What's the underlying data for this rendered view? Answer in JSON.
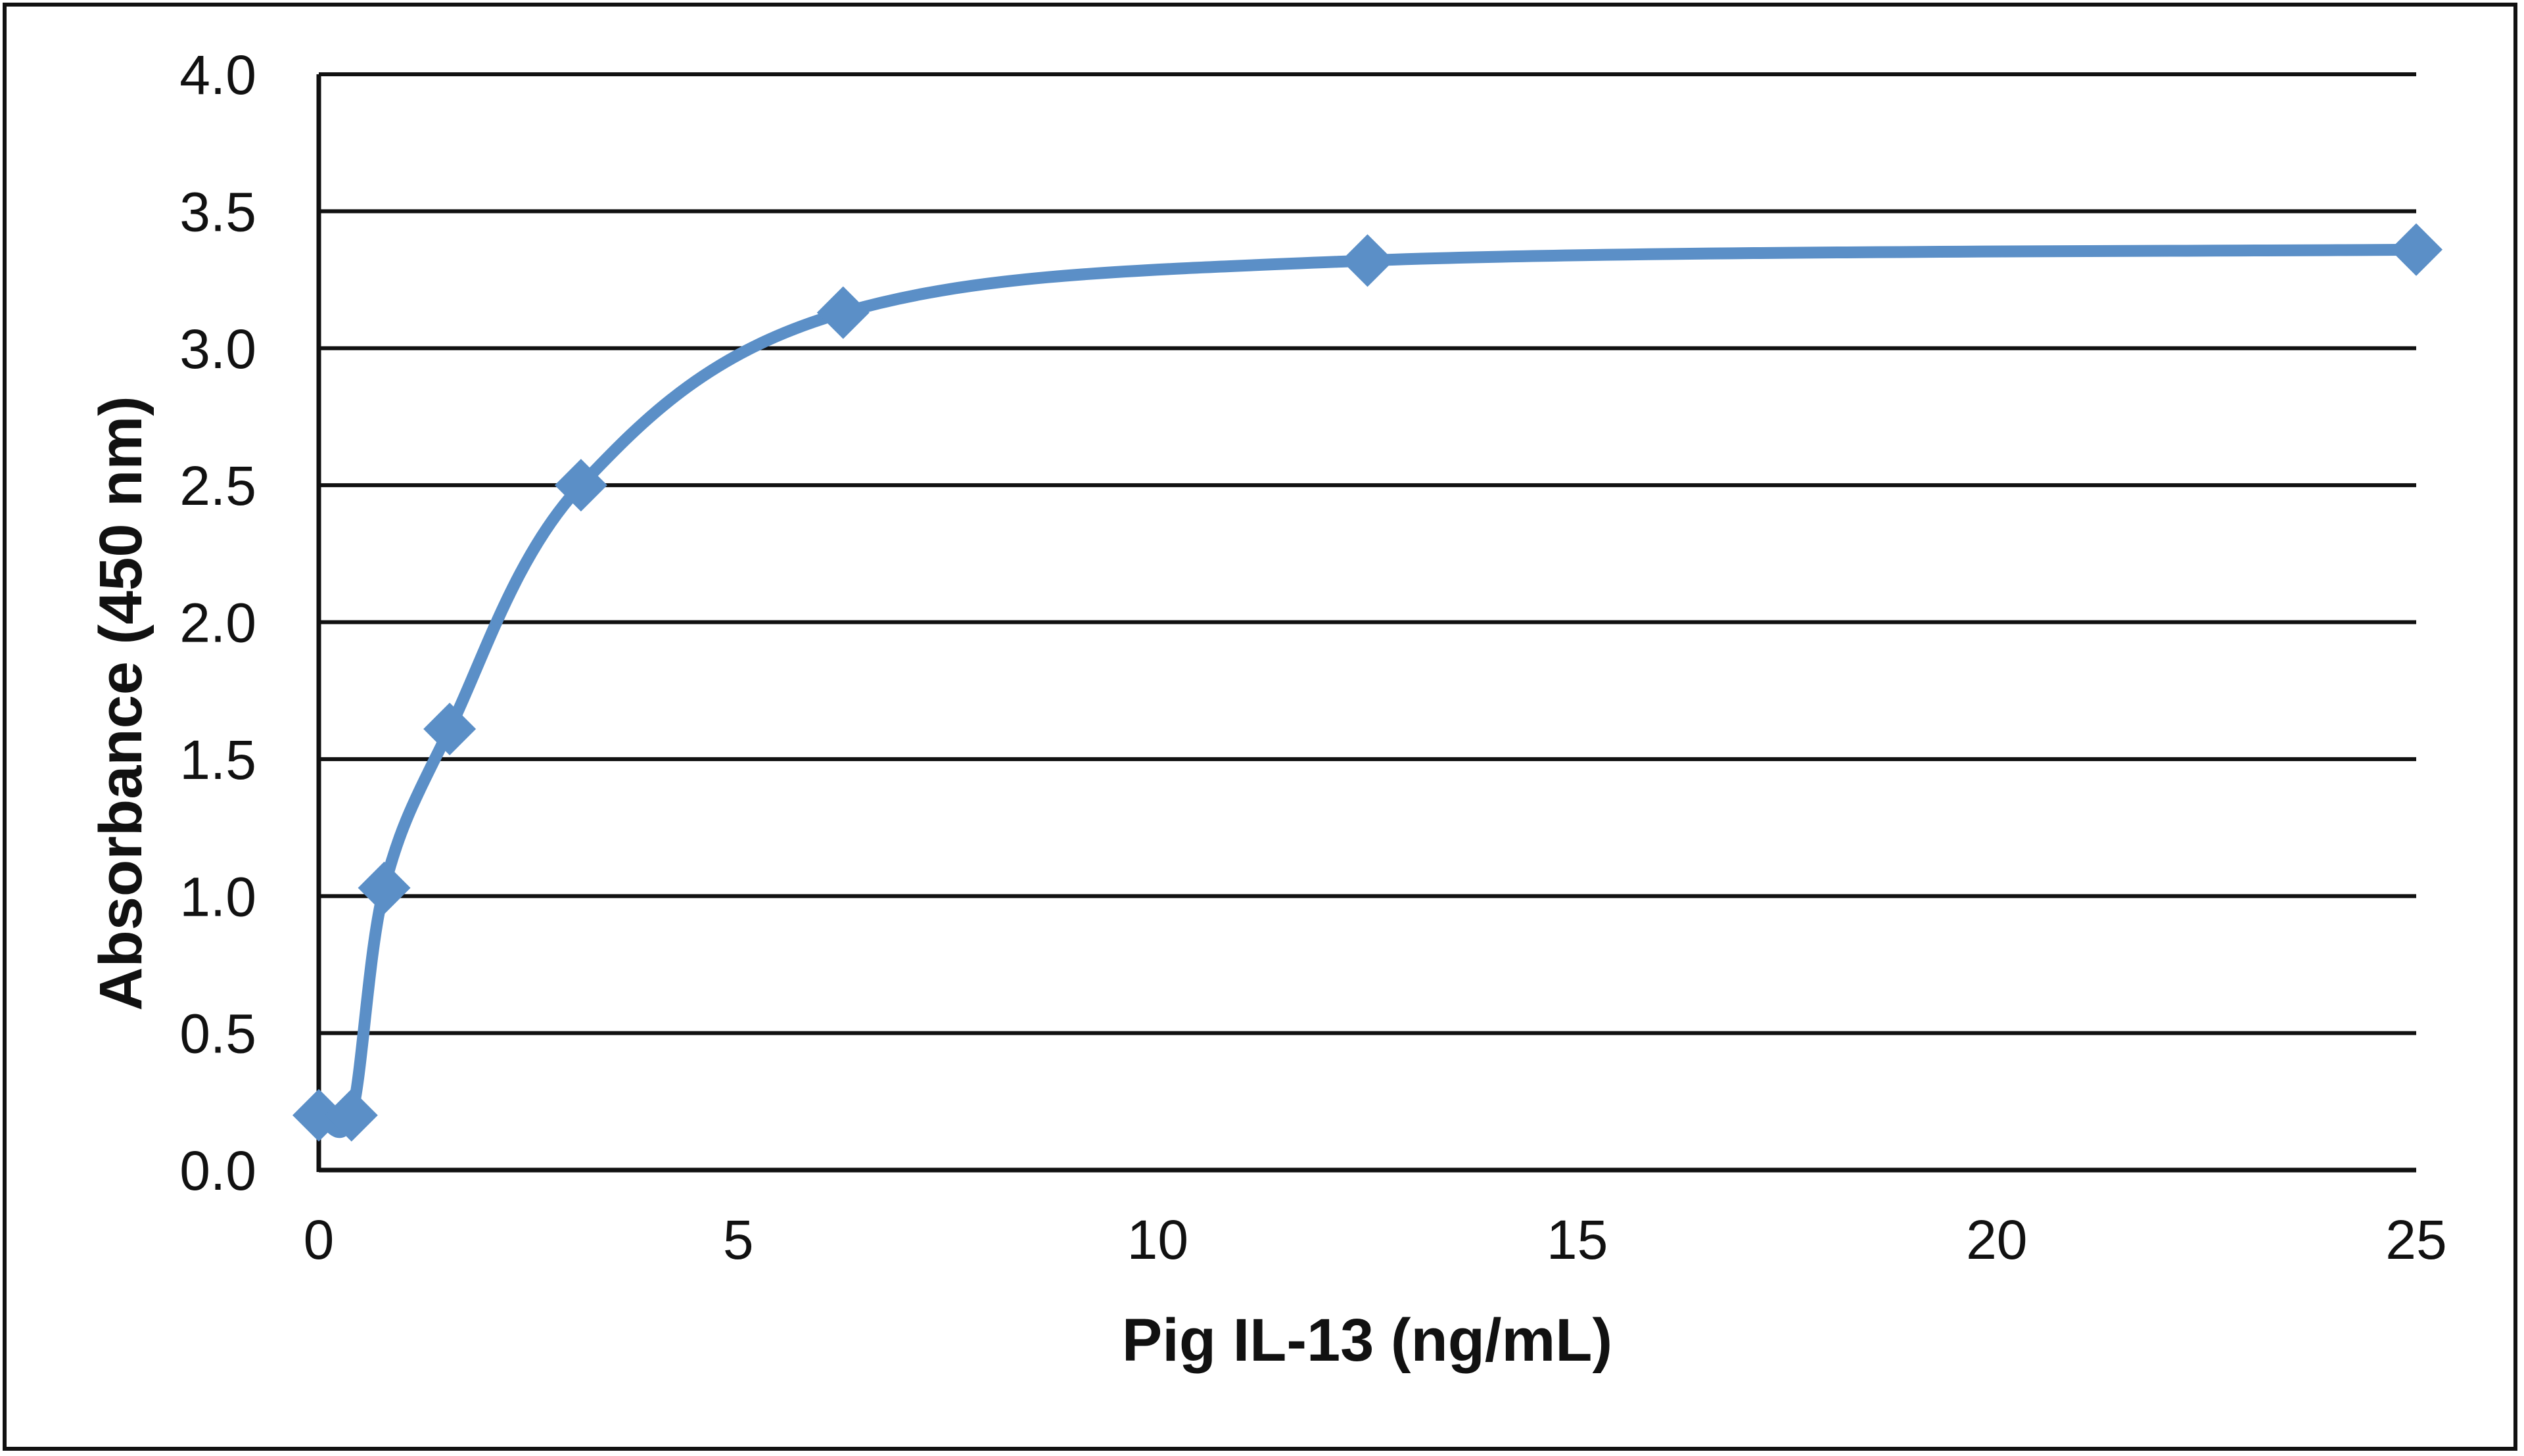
{
  "chart_data": {
    "type": "line",
    "title": "",
    "xlabel": "Pig IL-13 (ng/mL)",
    "ylabel": "Absorbance (450 nm)",
    "xlim": [
      0,
      25
    ],
    "ylim": [
      0,
      4.0
    ],
    "x_ticks": [
      "0",
      "5",
      "10",
      "15",
      "20",
      "25"
    ],
    "y_ticks": [
      "0.0",
      "0.5",
      "1.0",
      "1.5",
      "2.0",
      "2.5",
      "3.0",
      "3.5",
      "4.0"
    ],
    "grid": "horizontal",
    "legend": "none",
    "series": [
      {
        "name": "Pig IL-13",
        "color": "#5b8fc7",
        "marker": "diamond",
        "smooth": true,
        "x": [
          0,
          0.39,
          0.78,
          1.56,
          3.125,
          6.25,
          12.5,
          25
        ],
        "values": [
          0.2,
          0.2,
          1.03,
          1.61,
          2.5,
          3.13,
          3.32,
          3.36
        ]
      }
    ]
  }
}
